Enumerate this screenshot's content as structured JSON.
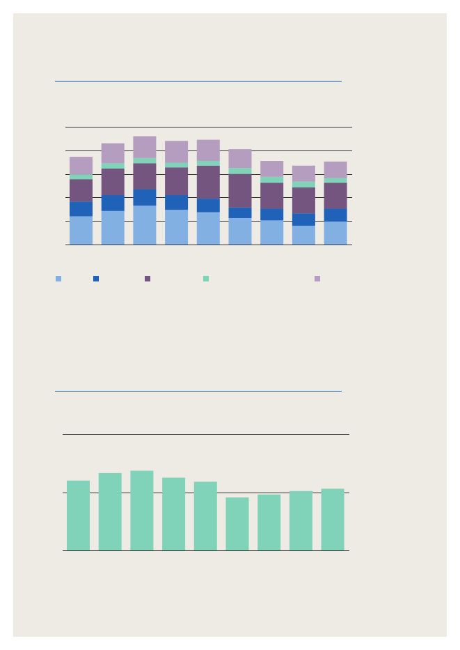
{
  "colors": {
    "background": "#eeebe5",
    "rule": "#1a5ba8",
    "grid": "#333333",
    "series": [
      "#82b0e3",
      "#1f62b8",
      "#74557f",
      "#80d3b8",
      "#b59dbf"
    ],
    "bar2": "#80d3b8"
  },
  "chart_data": [
    {
      "type": "bar",
      "stacked": true,
      "categories": [
        "",
        "",
        "",
        "",
        "",
        "",
        "",
        "",
        ""
      ],
      "series": [
        {
          "values": [
            24,
            28.5,
            33,
            29.5,
            27.5,
            22.5,
            20.5,
            16,
            19.5
          ],
          "color": "#82b0e3"
        },
        {
          "values": [
            12.5,
            13.5,
            14,
            12.5,
            11.5,
            9,
            10,
            10.5,
            11
          ],
          "color": "#1f62b8"
        },
        {
          "values": [
            19,
            22.5,
            22,
            23.5,
            28,
            28.5,
            22,
            22,
            22
          ],
          "color": "#74557f"
        },
        {
          "values": [
            4,
            4.5,
            4.5,
            4,
            4,
            5,
            5,
            5,
            4
          ],
          "color": "#80d3b8"
        },
        {
          "values": [
            15,
            17,
            18.5,
            18.5,
            18,
            16,
            13.5,
            13.5,
            14
          ],
          "color": "#b59dbf"
        }
      ],
      "ylim": [
        0,
        100
      ],
      "gridlines": [
        0,
        20,
        40,
        60,
        80,
        100
      ],
      "grid": true,
      "legend_position": "bottom"
    },
    {
      "type": "bar",
      "categories": [
        "",
        "",
        "",
        "",
        "",
        "",
        "",
        "",
        ""
      ],
      "values": [
        60,
        66.5,
        68.5,
        62.5,
        59,
        45.5,
        48,
        51,
        53
      ],
      "color": "#80d3b8",
      "ylim": [
        0,
        100
      ],
      "gridlines": [
        0,
        50,
        100
      ],
      "grid": true
    }
  ]
}
